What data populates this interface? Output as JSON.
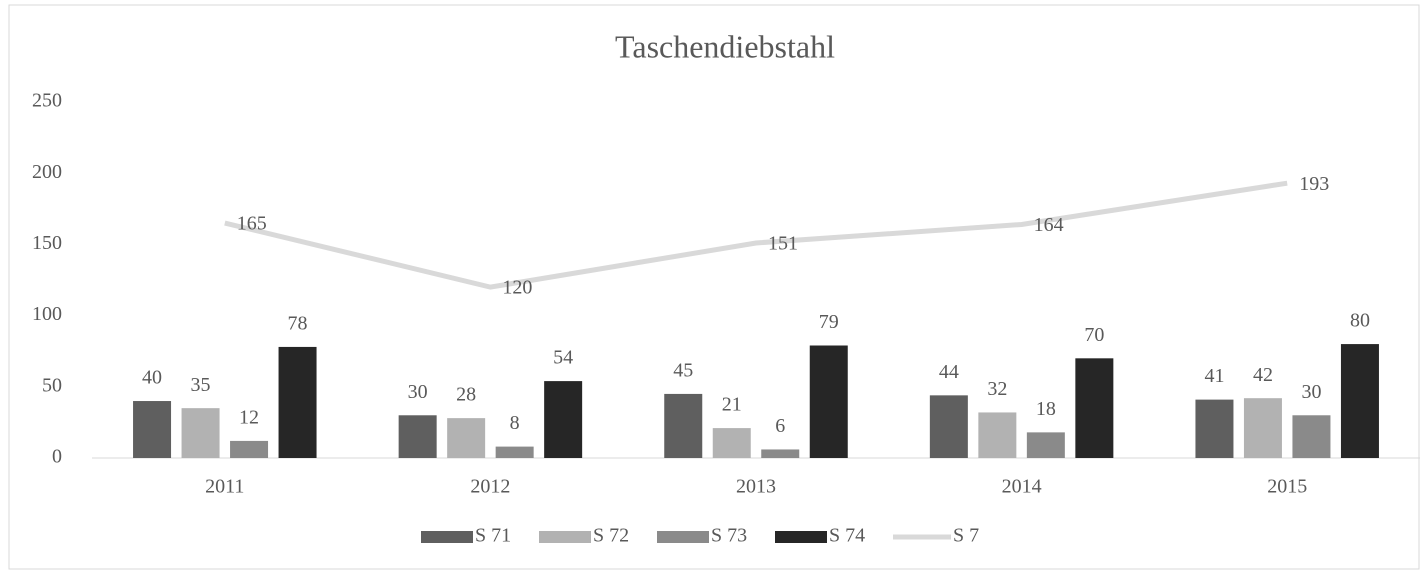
{
  "chart_data": {
    "type": "combo",
    "title": "Taschendiebstahl",
    "categories": [
      "2011",
      "2012",
      "2013",
      "2014",
      "2015"
    ],
    "series": [
      {
        "name": "S 71",
        "type": "bar",
        "color": "#5f5f5f",
        "values": [
          40,
          30,
          45,
          44,
          41
        ]
      },
      {
        "name": "S 72",
        "type": "bar",
        "color": "#b2b2b2",
        "values": [
          35,
          28,
          21,
          32,
          42
        ]
      },
      {
        "name": "S 73",
        "type": "bar",
        "color": "#8a8a8a",
        "values": [
          12,
          8,
          6,
          18,
          30
        ]
      },
      {
        "name": "S 74",
        "type": "bar",
        "color": "#262626",
        "values": [
          78,
          54,
          79,
          70,
          80
        ]
      },
      {
        "name": "S 7",
        "type": "line",
        "color": "#d9d9d9",
        "values": [
          165,
          120,
          151,
          164,
          193
        ]
      }
    ],
    "ylim": [
      0,
      250
    ],
    "yticks": [
      0,
      50,
      100,
      150,
      200,
      250
    ],
    "grid": false,
    "legend": "bottom"
  }
}
